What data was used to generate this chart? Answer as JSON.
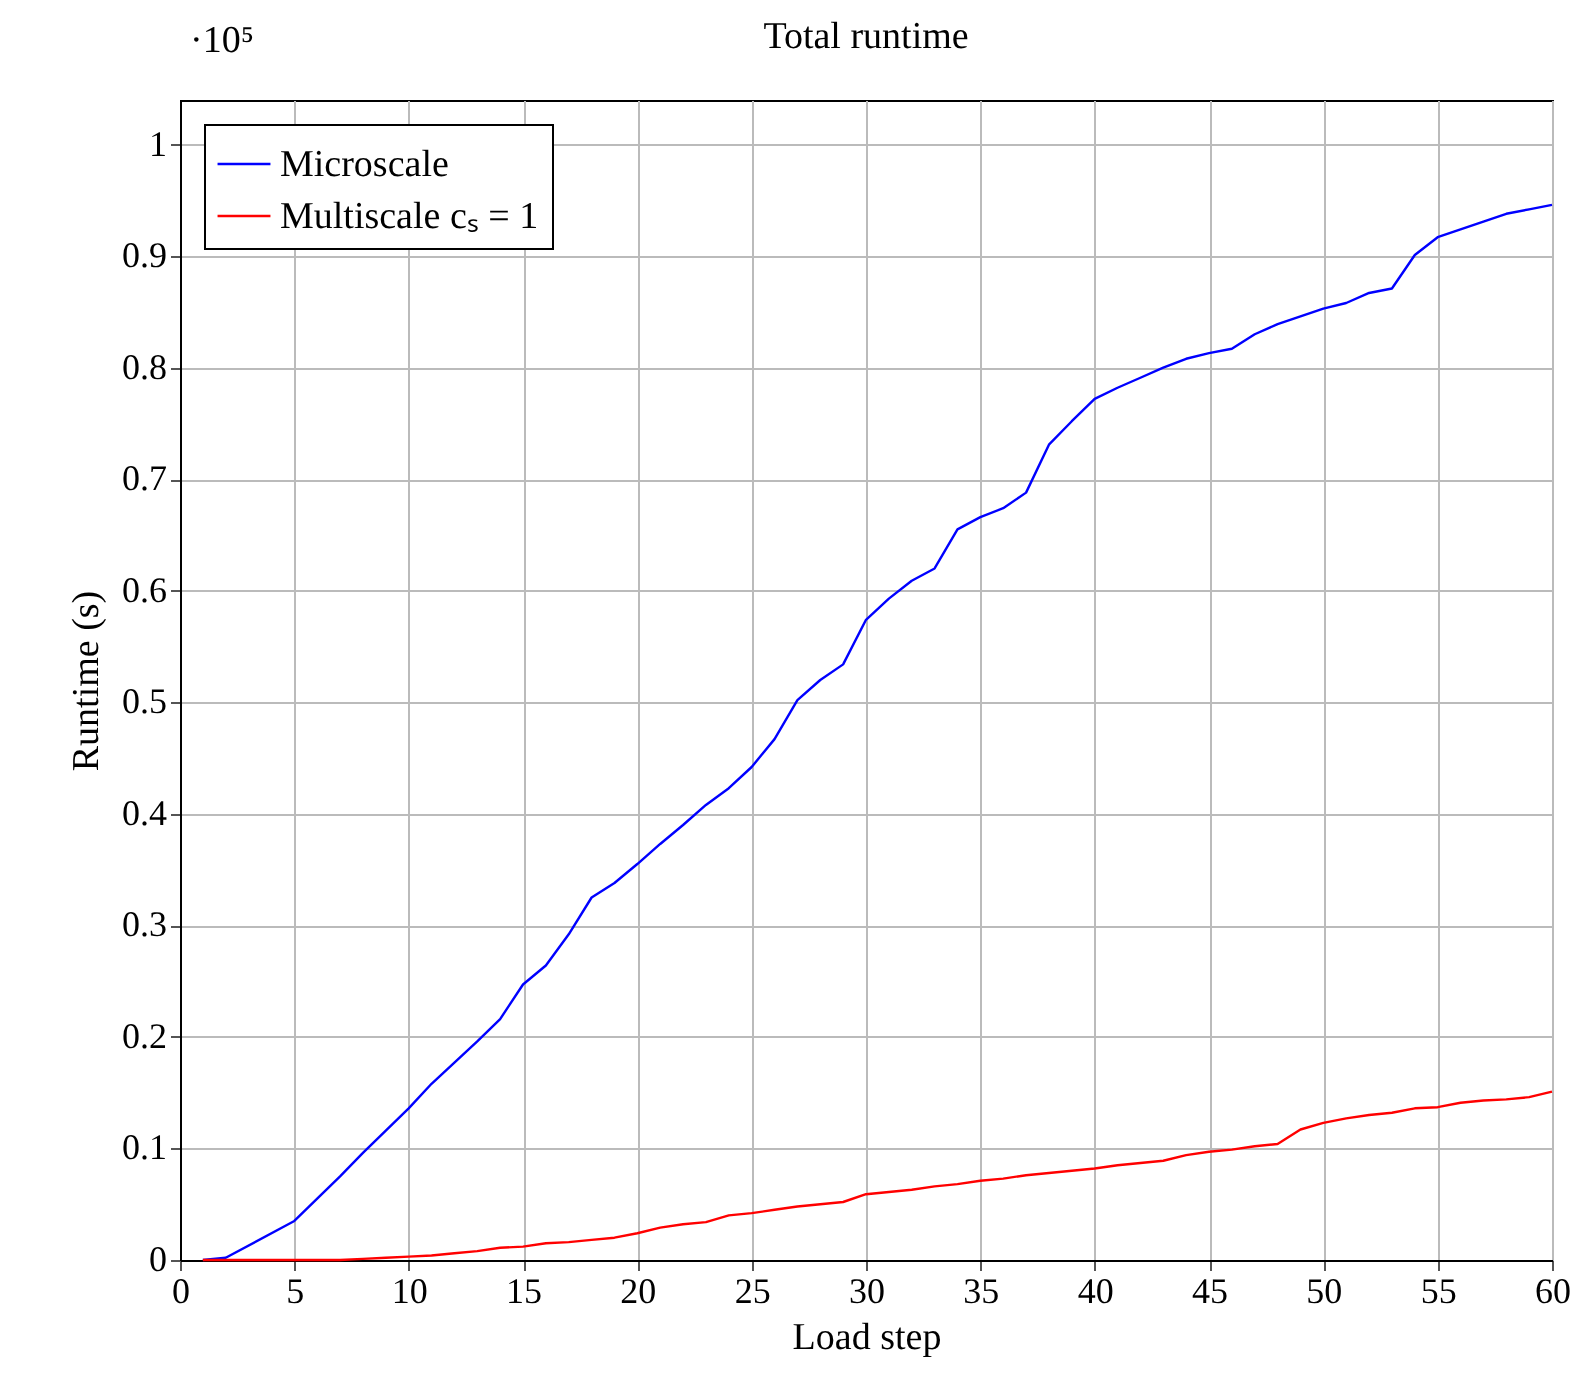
{
  "chart_data": {
    "type": "line",
    "title": "Total runtime",
    "xlabel": "Load step",
    "ylabel": "Runtime (s)",
    "annotations": [
      "·10⁵"
    ],
    "x": [
      1,
      2,
      5,
      6,
      7,
      8,
      9,
      10,
      11,
      12,
      13,
      14,
      15,
      16,
      17,
      18,
      19,
      20,
      21,
      22,
      23,
      24,
      25,
      26,
      27,
      28,
      29,
      30,
      31,
      32,
      33,
      34,
      35,
      36,
      37,
      38,
      39,
      40,
      41,
      42,
      43,
      44,
      45,
      46,
      47,
      48,
      49,
      50,
      51,
      52,
      53,
      54,
      55,
      56,
      57,
      58,
      59,
      60
    ],
    "series": [
      {
        "name": "Microscale",
        "color": "#0000ff",
        "values": [
          0,
          0.002,
          0.035,
          0.055,
          0.075,
          0.096,
          0.116,
          0.136,
          0.158,
          0.177,
          0.196,
          0.216,
          0.247,
          0.264,
          0.292,
          0.325,
          0.338,
          0.355,
          0.373,
          0.39,
          0.408,
          0.423,
          0.442,
          0.467,
          0.502,
          0.52,
          0.534,
          0.574,
          0.593,
          0.609,
          0.62,
          0.655,
          0.666,
          0.674,
          0.688,
          0.731,
          0.752,
          0.772,
          0.782,
          0.791,
          0.8,
          0.808,
          0.813,
          0.817,
          0.83,
          0.839,
          0.846,
          0.853,
          0.858,
          0.867,
          0.871,
          0.901,
          0.917,
          0.924,
          0.931,
          0.938,
          0.942,
          0.946
        ]
      },
      {
        "name": "Multiscale cₛ = 1",
        "color": "#ff0000",
        "values": [
          0,
          0,
          0,
          0,
          0,
          0.001,
          0.002,
          0.003,
          0.004,
          0.006,
          0.008,
          0.011,
          0.012,
          0.015,
          0.016,
          0.018,
          0.02,
          0.024,
          0.029,
          0.032,
          0.034,
          0.04,
          0.042,
          0.045,
          0.048,
          0.05,
          0.052,
          0.059,
          0.061,
          0.063,
          0.066,
          0.068,
          0.071,
          0.073,
          0.076,
          0.078,
          0.08,
          0.082,
          0.085,
          0.087,
          0.089,
          0.094,
          0.097,
          0.099,
          0.102,
          0.104,
          0.117,
          0.123,
          0.127,
          0.13,
          0.132,
          0.136,
          0.137,
          0.141,
          0.143,
          0.144,
          0.146,
          0.151
        ]
      }
    ],
    "xlim": [
      0,
      60
    ],
    "xticks": [
      0,
      5,
      10,
      15,
      20,
      25,
      30,
      35,
      40,
      45,
      50,
      55,
      60
    ],
    "ylim": [
      0,
      1.04
    ],
    "yticks": [
      0,
      0.1,
      0.2,
      0.3,
      0.4,
      0.5,
      0.6,
      0.7,
      0.8,
      0.9,
      1
    ],
    "grid": true,
    "legend": "top left",
    "marker": "none",
    "line_style": "solid"
  }
}
